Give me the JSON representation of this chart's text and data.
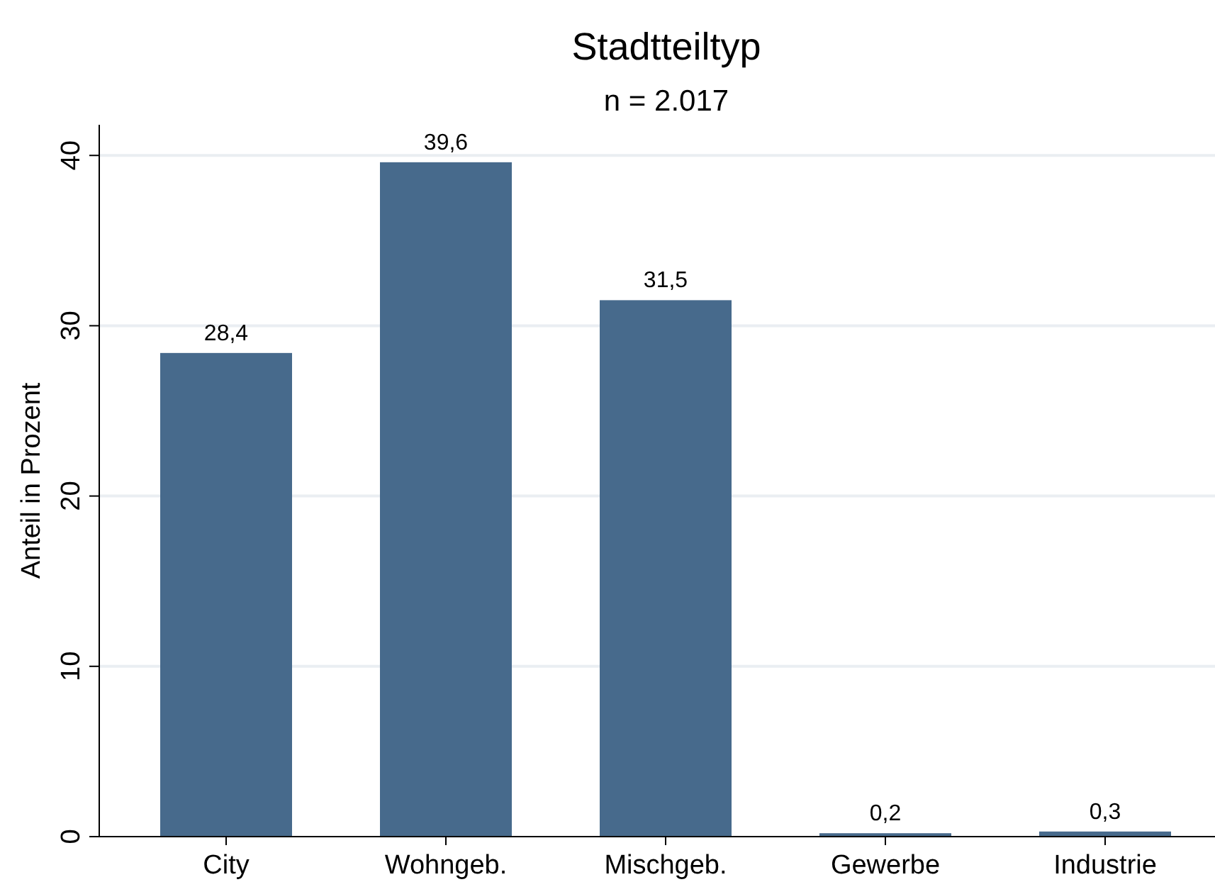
{
  "chart_data": {
    "type": "bar",
    "title": "Stadtteiltyp",
    "subtitle": "n = 2.017",
    "ylabel": "Anteil in Prozent",
    "categories": [
      "City",
      "Wohngeb.",
      "Mischgeb.",
      "Gewerbe",
      "Industrie"
    ],
    "values": [
      28.4,
      39.6,
      31.5,
      0.2,
      0.3
    ],
    "value_labels": [
      "28,4",
      "39,6",
      "31,5",
      "0,2",
      "0,3"
    ],
    "color": "#476a8c",
    "ylim": [
      0,
      41.8
    ],
    "yticks": [
      0,
      10,
      20,
      30,
      40
    ],
    "grid": "y"
  }
}
